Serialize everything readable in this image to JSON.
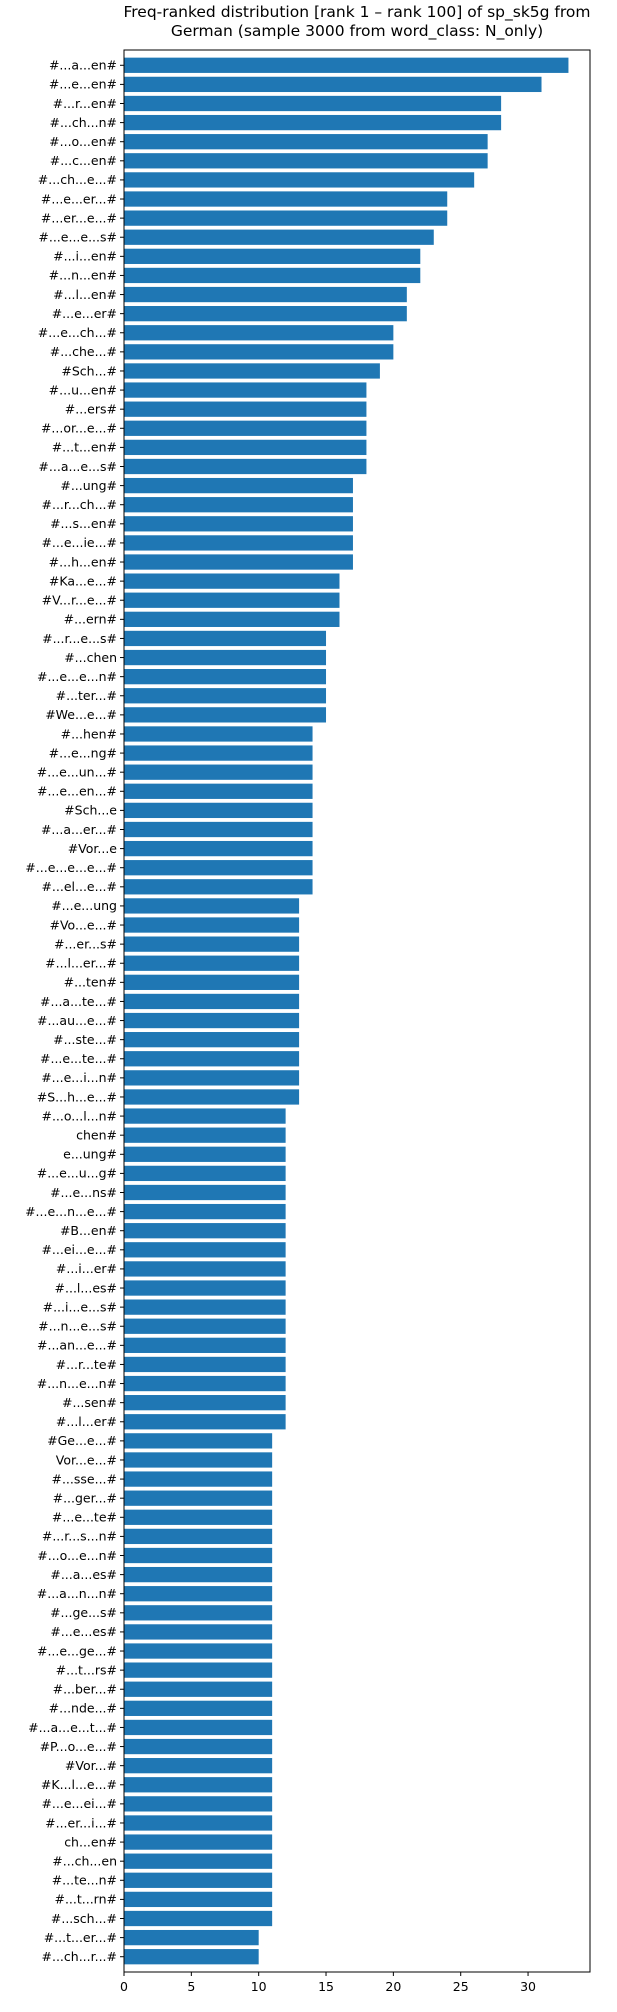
{
  "chart_data": {
    "type": "bar",
    "orientation": "horizontal",
    "title": "Freq-ranked distribution [rank 1 – rank 100] of sp_sk5g from German (sample 3000 from word_class: N_only)",
    "title_lines": [
      "Freq-ranked distribution [rank 1 – rank 100] of sp_sk5g from",
      "German (sample 3000 from word_class: N_only)"
    ],
    "xlabel": "",
    "ylabel": "",
    "xlim": [
      0,
      34.6
    ],
    "xticks": [
      0,
      5,
      10,
      15,
      20,
      25,
      30
    ],
    "bar_color": "#1f77b4",
    "grid": false,
    "categories": [
      "#...a...en#",
      "#...e...en#",
      "#...r...en#",
      "#...ch...n#",
      "#...o...en#",
      "#...c...en#",
      "#...ch...e...#",
      "#...e...er...#",
      "#...er...e...#",
      "#...e...e...s#",
      "#...i...en#",
      "#...n...en#",
      "#...l...en#",
      "#...e...er#",
      "#...e...ch...#",
      "#...che...#",
      "#Sch...#",
      "#...u...en#",
      "#...ers#",
      "#...or...e...#",
      "#...t...en#",
      "#...a...e...s#",
      "#...ung#",
      "#...r...ch...#",
      "#...s...en#",
      "#...e...ie...#",
      "#...h...en#",
      "#Ka...e...#",
      "#V...r...e...#",
      "#...ern#",
      "#...r...e...s#",
      "#...chen",
      "#...e...e...n#",
      "#...ter...#",
      "#We...e...#",
      "#...hen#",
      "#...e...ng#",
      "#...e...un...#",
      "#...e...en...#",
      "#Sch...e",
      "#...a...er...#",
      "#Vor...e",
      "#...e...e...e...#",
      "#...el...e...#",
      "#...e...ung",
      "#Vo...e...#",
      "#...er...s#",
      "#...l...er...#",
      "#...ten#",
      "#...a...te...#",
      "#...au...e...#",
      "#...ste...#",
      "#...e...te...#",
      "#...e...i...n#",
      "#S...h...e...#",
      "#...o...l...n#",
      "chen#",
      "e...ung#",
      "#...e...u...g#",
      "#...e...ns#",
      "#...e...n...e...#",
      "#B...en#",
      "#...ei...e...#",
      "#...i...er#",
      "#...l...es#",
      "#...i...e...s#",
      "#...n...e...s#",
      "#...an...e...#",
      "#...r...te#",
      "#...n...e...n#",
      "#...sen#",
      "#...l...er#",
      "#Ge...e...#",
      "Vor...e...#",
      "#...sse...#",
      "#...ger...#",
      "#...e...te#",
      "#...r...s...n#",
      "#...o...e...n#",
      "#...a...es#",
      "#...a...n...n#",
      "#...ge...s#",
      "#...e...es#",
      "#...e...ge...#",
      "#...t...rs#",
      "#...ber...#",
      "#...nde...#",
      "#...a...e...t...#",
      "#P...o...e...#",
      "#Vor...#",
      "#K...l...e...#",
      "#...e...ei...#",
      "#...er...i...#",
      "ch...en#",
      "#...ch...en",
      "#...te...n#",
      "#...t...rn#",
      "#...sch...#",
      "#...t...er...#",
      "#...ch...r...#"
    ],
    "values": [
      33,
      31,
      28,
      28,
      27,
      27,
      26,
      24,
      24,
      23,
      22,
      22,
      21,
      21,
      20,
      20,
      19,
      18,
      18,
      18,
      18,
      18,
      17,
      17,
      17,
      17,
      17,
      16,
      16,
      16,
      15,
      15,
      15,
      15,
      15,
      14,
      14,
      14,
      14,
      14,
      14,
      14,
      14,
      14,
      13,
      13,
      13,
      13,
      13,
      13,
      13,
      13,
      13,
      13,
      13,
      12,
      12,
      12,
      12,
      12,
      12,
      12,
      12,
      12,
      12,
      12,
      12,
      12,
      12,
      12,
      12,
      12,
      11,
      11,
      11,
      11,
      11,
      11,
      11,
      11,
      11,
      11,
      11,
      11,
      11,
      11,
      11,
      11,
      11,
      11,
      11,
      11,
      11,
      11,
      11,
      11,
      11,
      11,
      10,
      10
    ]
  }
}
